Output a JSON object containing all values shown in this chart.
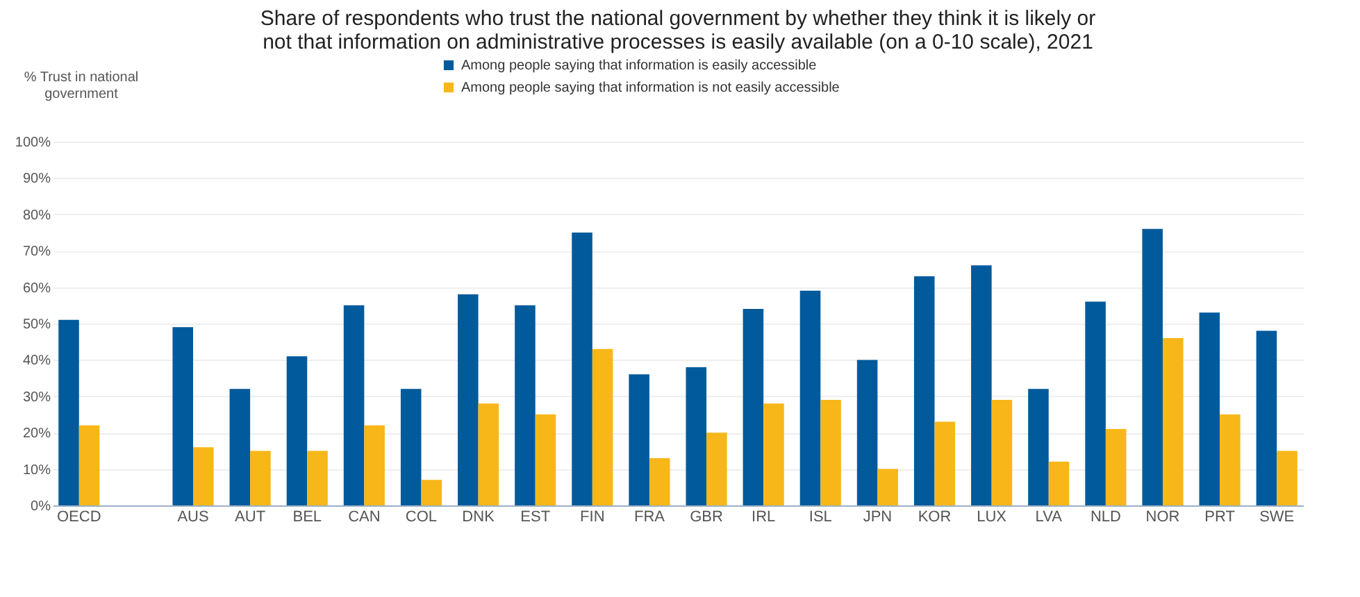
{
  "chart_data": {
    "type": "bar",
    "title": "Share of respondents who trust the national government by whether they think it is likely or not that information on administrative processes is easily available (on a 0-10 scale), 2021",
    "ylabel": "% Trust in national government",
    "categories": [
      "OECD",
      null,
      "AUS",
      "AUT",
      "BEL",
      "CAN",
      "COL",
      "DNK",
      "EST",
      "FIN",
      "FRA",
      "GBR",
      "IRL",
      "ISL",
      "JPN",
      "KOR",
      "LUX",
      "LVA",
      "NLD",
      "NOR",
      "PRT",
      "SWE"
    ],
    "series": [
      {
        "name": "Among people saying that information is easily accessible",
        "color": "#005a9c",
        "values": [
          51,
          null,
          49,
          32,
          41,
          55,
          32,
          58,
          55,
          75,
          36,
          38,
          54,
          59,
          40,
          63,
          66,
          32,
          56,
          76,
          53,
          48
        ]
      },
      {
        "name": "Among people saying that information is not easily accessible",
        "color": "#f7b718",
        "values": [
          22,
          null,
          16,
          15,
          15,
          22,
          7,
          28,
          25,
          43,
          13,
          20,
          28,
          29,
          10,
          23,
          29,
          12,
          21,
          46,
          25,
          15
        ]
      }
    ],
    "ylim": [
      0,
      100
    ],
    "yticks": [
      {
        "value": 0,
        "label": "0%"
      },
      {
        "value": 10,
        "label": "10%"
      },
      {
        "value": 20,
        "label": "20%"
      },
      {
        "value": 30,
        "label": "30%"
      },
      {
        "value": 40,
        "label": "40%"
      },
      {
        "value": 50,
        "label": "50%"
      },
      {
        "value": 60,
        "label": "60%"
      },
      {
        "value": 70,
        "label": "70%"
      },
      {
        "value": 80,
        "label": "80%"
      },
      {
        "value": 90,
        "label": "90%"
      },
      {
        "value": 100,
        "label": "100%"
      }
    ],
    "grid": "y",
    "legend": "top"
  }
}
